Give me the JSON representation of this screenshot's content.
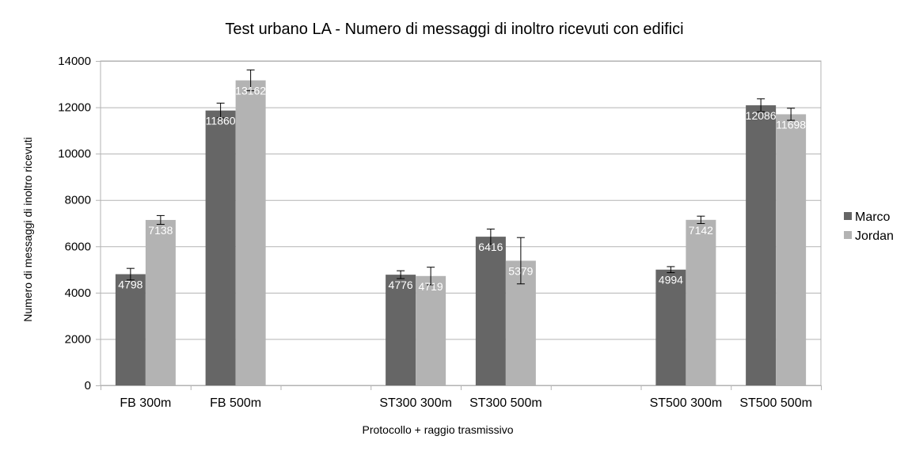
{
  "chart_data": {
    "type": "bar",
    "title": "Test urbano LA - Numero di messaggi di inoltro ricevuti con edifici",
    "xlabel": "Protocollo + raggio trasmissivo",
    "ylabel": "Numero di messaggi di inoltro ricevuti",
    "ylim": [
      0,
      14000
    ],
    "yticks": [
      0,
      2000,
      4000,
      6000,
      8000,
      10000,
      12000,
      14000
    ],
    "grid": true,
    "legend_position": "right",
    "categories": [
      "FB 300m",
      "FB 500m",
      "",
      "ST300 300m",
      "ST300 500m",
      "",
      "ST500 300m",
      "ST500 500m"
    ],
    "series": [
      {
        "name": "Marco",
        "color": "#666666",
        "values": [
          4798,
          11860,
          null,
          4776,
          6416,
          null,
          4994,
          12086
        ],
        "errors": [
          250,
          320,
          null,
          170,
          330,
          null,
          130,
          280
        ]
      },
      {
        "name": "Jordan",
        "color": "#b3b3b3",
        "values": [
          7138,
          13162,
          null,
          4719,
          5379,
          null,
          7142,
          11698
        ],
        "errors": [
          190,
          450,
          null,
          380,
          1000,
          null,
          160,
          260
        ]
      }
    ]
  }
}
